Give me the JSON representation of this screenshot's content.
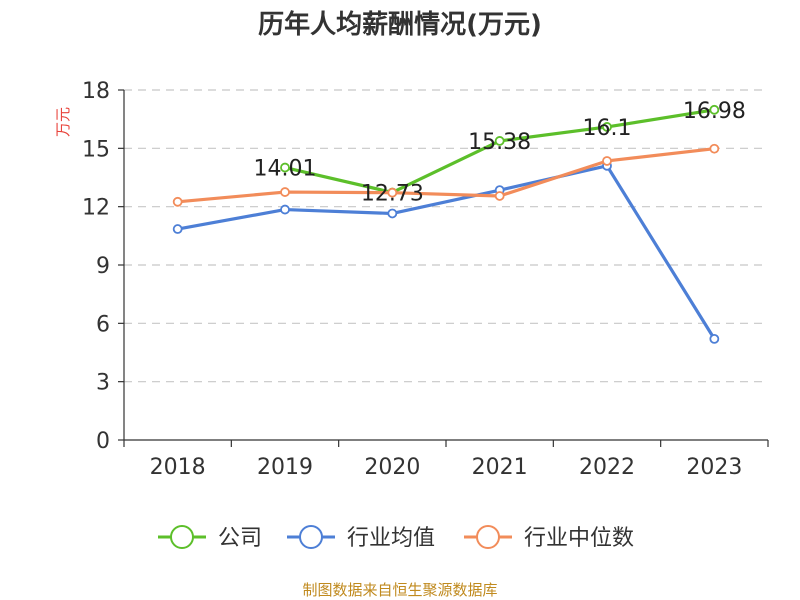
{
  "chart_data": {
    "type": "line",
    "title": "历年人均薪酬情况(万元)",
    "ylabel": "万元",
    "xlabel": "",
    "categories": [
      "2018",
      "2019",
      "2020",
      "2021",
      "2022",
      "2023"
    ],
    "ylim": [
      0,
      18
    ],
    "yticks": [
      0,
      3,
      6,
      9,
      12,
      15,
      18
    ],
    "grid": true,
    "legend_position": "bottom",
    "series": [
      {
        "name": "公司",
        "color": "#5cbf2a",
        "values": [
          null,
          14.01,
          12.73,
          15.38,
          16.1,
          16.98
        ],
        "labels": [
          "",
          "14.01",
          "12.73",
          "15.38",
          "16.1",
          "16.98"
        ]
      },
      {
        "name": "行业均值",
        "color": "#4d7fd6",
        "values": [
          10.85,
          11.85,
          11.65,
          12.85,
          14.1,
          5.2
        ],
        "labels": [
          "",
          "",
          "",
          "",
          "",
          ""
        ]
      },
      {
        "name": "行业中位数",
        "color": "#f28c5a",
        "values": [
          12.25,
          12.75,
          12.72,
          12.55,
          14.35,
          14.98
        ],
        "labels": [
          "",
          "",
          "",
          "",
          "",
          ""
        ]
      }
    ]
  },
  "source_note": "制图数据来自恒生聚源数据库"
}
